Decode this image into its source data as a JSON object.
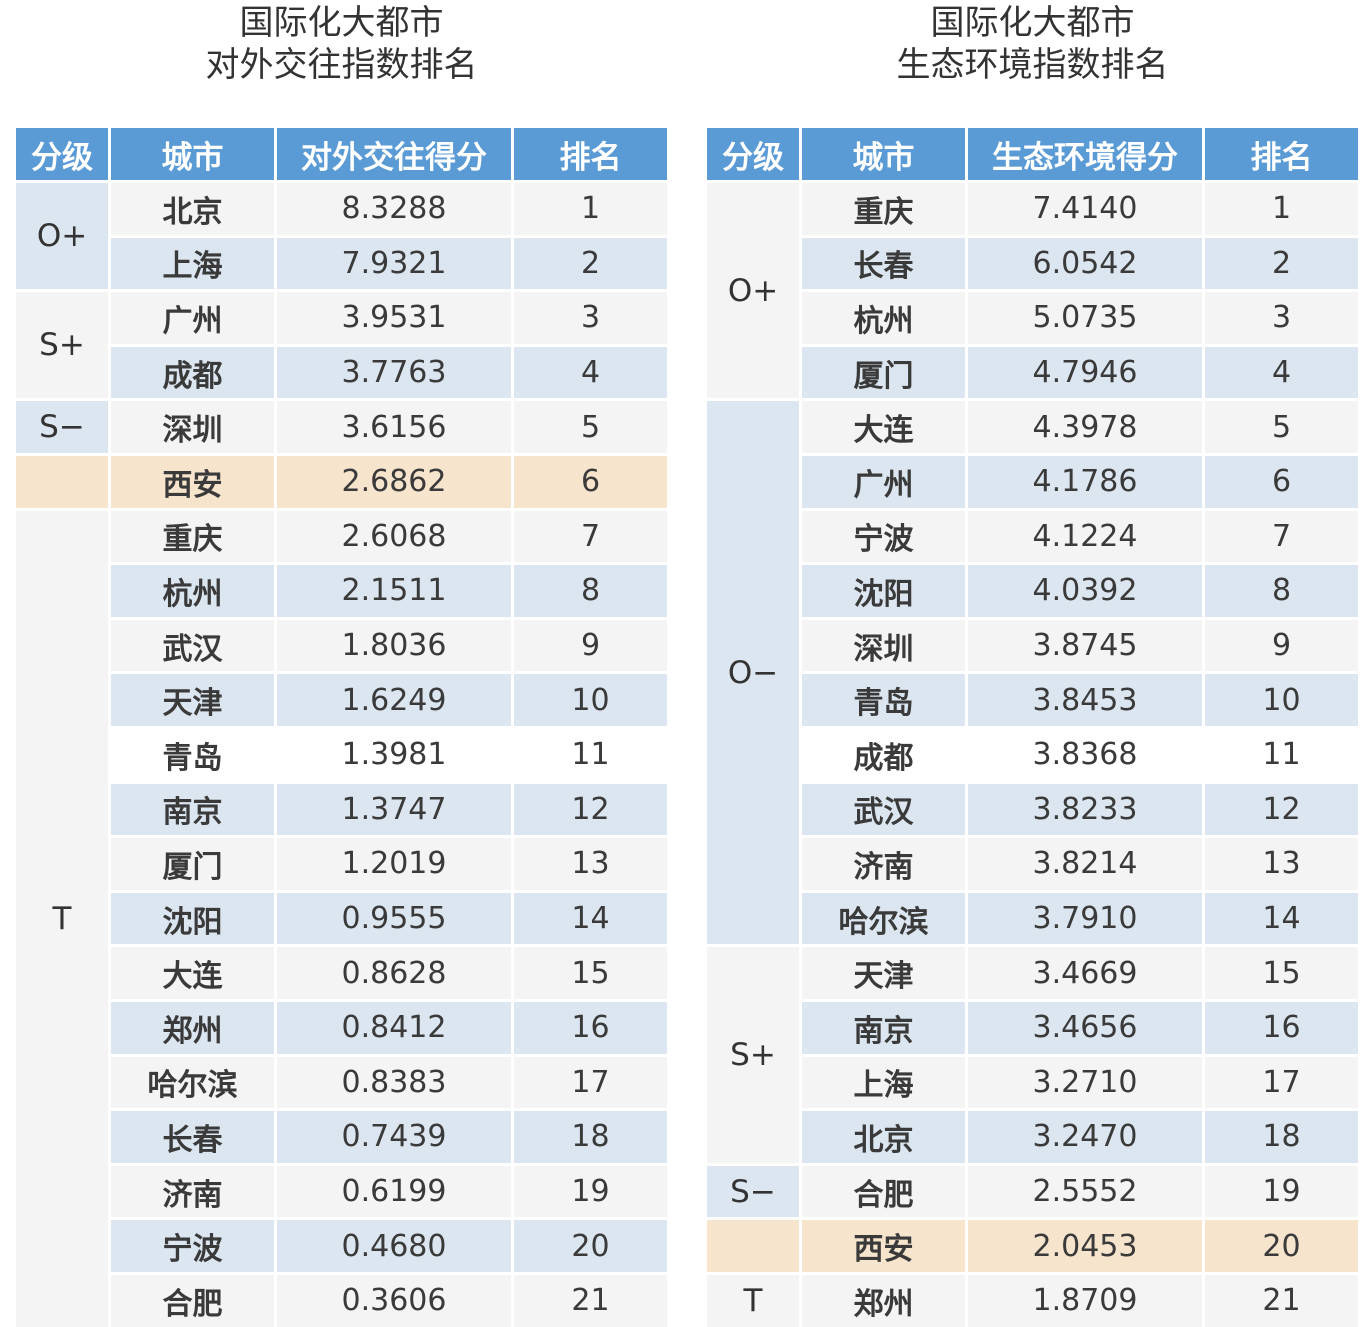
{
  "left": {
    "title_line1": "国际化大都市",
    "title_line2": "对外交往指数排名",
    "headers": [
      "分级",
      "城市",
      "对外交往得分",
      "排名"
    ],
    "tiers": [
      {
        "label": "O+",
        "rows": 2,
        "style": "blue"
      },
      {
        "label": "S+",
        "rows": 2,
        "style": "light"
      },
      {
        "label": "S−",
        "rows": 1,
        "style": "blue"
      },
      {
        "label": "",
        "rows": 1,
        "style": "peach"
      },
      {
        "label": "T",
        "rows": 15,
        "style": "light"
      }
    ],
    "rows": [
      {
        "city": "北京",
        "score": "8.3288",
        "rank": "1",
        "bg": "light"
      },
      {
        "city": "上海",
        "score": "7.9321",
        "rank": "2",
        "bg": "blue"
      },
      {
        "city": "广州",
        "score": "3.9531",
        "rank": "3",
        "bg": "light"
      },
      {
        "city": "成都",
        "score": "3.7763",
        "rank": "4",
        "bg": "blue"
      },
      {
        "city": "深圳",
        "score": "3.6156",
        "rank": "5",
        "bg": "light"
      },
      {
        "city": "西安",
        "score": "2.6862",
        "rank": "6",
        "bg": "peach"
      },
      {
        "city": "重庆",
        "score": "2.6068",
        "rank": "7",
        "bg": "light"
      },
      {
        "city": "杭州",
        "score": "2.1511",
        "rank": "8",
        "bg": "blue"
      },
      {
        "city": "武汉",
        "score": "1.8036",
        "rank": "9",
        "bg": "light"
      },
      {
        "city": "天津",
        "score": "1.6249",
        "rank": "10",
        "bg": "blue"
      },
      {
        "city": "青岛",
        "score": "1.3981",
        "rank": "11",
        "bg": "white"
      },
      {
        "city": "南京",
        "score": "1.3747",
        "rank": "12",
        "bg": "blue"
      },
      {
        "city": "厦门",
        "score": "1.2019",
        "rank": "13",
        "bg": "light"
      },
      {
        "city": "沈阳",
        "score": "0.9555",
        "rank": "14",
        "bg": "blue"
      },
      {
        "city": "大连",
        "score": "0.8628",
        "rank": "15",
        "bg": "light"
      },
      {
        "city": "郑州",
        "score": "0.8412",
        "rank": "16",
        "bg": "blue"
      },
      {
        "city": "哈尔滨",
        "score": "0.8383",
        "rank": "17",
        "bg": "light"
      },
      {
        "city": "长春",
        "score": "0.7439",
        "rank": "18",
        "bg": "blue"
      },
      {
        "city": "济南",
        "score": "0.6199",
        "rank": "19",
        "bg": "light"
      },
      {
        "city": "宁波",
        "score": "0.4680",
        "rank": "20",
        "bg": "blue"
      },
      {
        "city": "合肥",
        "score": "0.3606",
        "rank": "21",
        "bg": "light"
      }
    ]
  },
  "right": {
    "title_line1": "国际化大都市",
    "title_line2": "生态环境指数排名",
    "headers": [
      "分级",
      "城市",
      "生态环境得分",
      "排名"
    ],
    "tiers": [
      {
        "label": "O+",
        "rows": 4,
        "style": "light"
      },
      {
        "label": "O−",
        "rows": 10,
        "style": "blue"
      },
      {
        "label": "S+",
        "rows": 4,
        "style": "light"
      },
      {
        "label": "S−",
        "rows": 1,
        "style": "blue"
      },
      {
        "label": "",
        "rows": 1,
        "style": "peach"
      },
      {
        "label": "T",
        "rows": 1,
        "style": "light"
      }
    ],
    "rows": [
      {
        "city": "重庆",
        "score": "7.4140",
        "rank": "1",
        "bg": "light"
      },
      {
        "city": "长春",
        "score": "6.0542",
        "rank": "2",
        "bg": "blue"
      },
      {
        "city": "杭州",
        "score": "5.0735",
        "rank": "3",
        "bg": "light"
      },
      {
        "city": "厦门",
        "score": "4.7946",
        "rank": "4",
        "bg": "blue"
      },
      {
        "city": "大连",
        "score": "4.3978",
        "rank": "5",
        "bg": "light"
      },
      {
        "city": "广州",
        "score": "4.1786",
        "rank": "6",
        "bg": "blue"
      },
      {
        "city": "宁波",
        "score": "4.1224",
        "rank": "7",
        "bg": "light"
      },
      {
        "city": "沈阳",
        "score": "4.0392",
        "rank": "8",
        "bg": "blue"
      },
      {
        "city": "深圳",
        "score": "3.8745",
        "rank": "9",
        "bg": "light"
      },
      {
        "city": "青岛",
        "score": "3.8453",
        "rank": "10",
        "bg": "blue"
      },
      {
        "city": "成都",
        "score": "3.8368",
        "rank": "11",
        "bg": "white"
      },
      {
        "city": "武汉",
        "score": "3.8233",
        "rank": "12",
        "bg": "blue"
      },
      {
        "city": "济南",
        "score": "3.8214",
        "rank": "13",
        "bg": "light"
      },
      {
        "city": "哈尔滨",
        "score": "3.7910",
        "rank": "14",
        "bg": "blue"
      },
      {
        "city": "天津",
        "score": "3.4669",
        "rank": "15",
        "bg": "light"
      },
      {
        "city": "南京",
        "score": "3.4656",
        "rank": "16",
        "bg": "blue"
      },
      {
        "city": "上海",
        "score": "3.2710",
        "rank": "17",
        "bg": "light"
      },
      {
        "city": "北京",
        "score": "3.2470",
        "rank": "18",
        "bg": "blue"
      },
      {
        "city": "合肥",
        "score": "2.5552",
        "rank": "19",
        "bg": "light"
      },
      {
        "city": "西安",
        "score": "2.0453",
        "rank": "20",
        "bg": "peach"
      },
      {
        "city": "郑州",
        "score": "1.8709",
        "rank": "21",
        "bg": "light"
      }
    ]
  }
}
